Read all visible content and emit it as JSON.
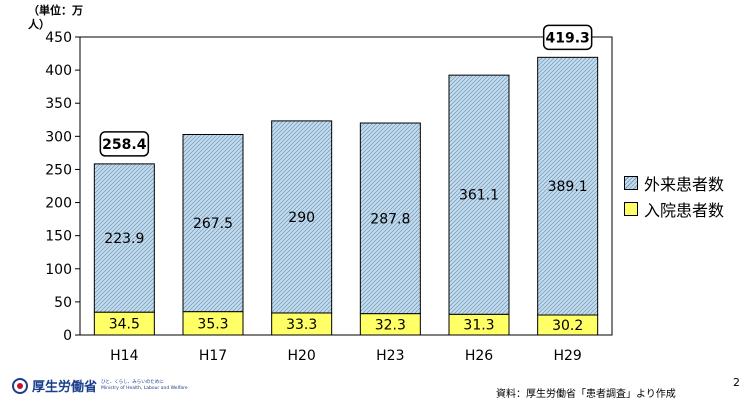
{
  "unit_label": "（単位：万人）",
  "colors": {
    "outpatient": "#c5dcec",
    "inpatient": "#ffff66"
  },
  "legend": [
    {
      "key": "outpatient",
      "label": "外来患者数"
    },
    {
      "key": "inpatient",
      "label": "入院患者数"
    }
  ],
  "footer": {
    "logo_text": "厚生労働省",
    "logo_sub1": "ひと、くらし、みらいのために",
    "logo_sub2": "Ministry of Health, Labour and Welfare",
    "source": "資料：厚生労働省「患者調査」より作成",
    "page_number": "2"
  },
  "chart_data": {
    "type": "bar",
    "stacked": true,
    "categories": [
      "H14",
      "H17",
      "H20",
      "H23",
      "H26",
      "H29"
    ],
    "series": [
      {
        "name": "入院患者数",
        "values": [
          34.5,
          35.3,
          33.3,
          32.3,
          31.3,
          30.2
        ],
        "labels": [
          "34.5",
          "35.3",
          "33.3",
          "32.3",
          "31.3",
          "30.2"
        ]
      },
      {
        "name": "外来患者数",
        "values": [
          223.9,
          267.5,
          290,
          287.8,
          361.1,
          389.1
        ],
        "labels": [
          "223.9",
          "267.5",
          "290",
          "287.8",
          "361.1",
          "389.1"
        ]
      }
    ],
    "totals": [
      {
        "index": 0,
        "label": "258.4"
      },
      {
        "index": 5,
        "label": "419.3"
      }
    ],
    "ylim": [
      0,
      450
    ],
    "yticks": [
      0,
      50,
      100,
      150,
      200,
      250,
      300,
      350,
      400,
      450
    ],
    "grid": false,
    "legend_position": "right"
  }
}
